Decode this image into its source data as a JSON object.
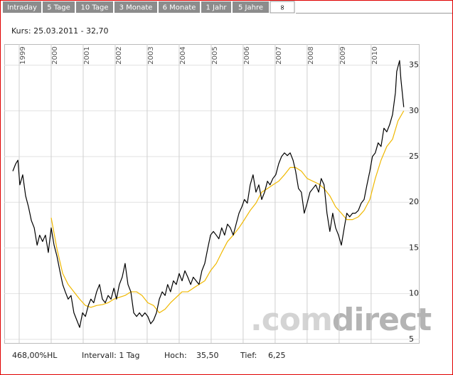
{
  "tabs": [
    "Intraday",
    "5 Tage",
    "10 Tage",
    "3 Monate",
    "6 Monate",
    "1 Jahr",
    "5 Jahre",
    "∞"
  ],
  "header": {
    "quote": "Kurs: 25.03.2011 - 32,70"
  },
  "chart_data": {
    "type": "line",
    "xlim": [
      1998.8,
      2011.07
    ],
    "xticks": [
      1999,
      2000,
      2001,
      2002,
      2003,
      2004,
      2005,
      2006,
      2007,
      2008,
      2009,
      2010
    ],
    "ylim": [
      4.6,
      37.3
    ],
    "yticks": [
      5,
      10,
      15,
      20,
      25,
      30,
      35
    ],
    "grid": true,
    "watermark": [
      ".com",
      "direct"
    ],
    "series": [
      {
        "color": "#000000",
        "x": [
          1998.8,
          1998.89,
          1998.96,
          1999.02,
          1999.11,
          1999.2,
          1999.29,
          1999.38,
          1999.47,
          1999.56,
          1999.64,
          1999.73,
          1999.82,
          1999.91,
          2000.0,
          2000.09,
          2000.18,
          2000.27,
          2000.36,
          2000.44,
          2000.53,
          2000.62,
          2000.71,
          2000.8,
          2000.89,
          2000.98,
          2001.07,
          2001.16,
          2001.24,
          2001.33,
          2001.42,
          2001.51,
          2001.6,
          2001.69,
          2001.78,
          2001.87,
          2001.96,
          2002.04,
          2002.13,
          2002.22,
          2002.31,
          2002.4,
          2002.49,
          2002.58,
          2002.67,
          2002.76,
          2002.84,
          2002.93,
          2003.02,
          2003.11,
          2003.2,
          2003.29,
          2003.38,
          2003.47,
          2003.56,
          2003.64,
          2003.73,
          2003.82,
          2003.91,
          2004.0,
          2004.09,
          2004.18,
          2004.27,
          2004.36,
          2004.44,
          2004.53,
          2004.62,
          2004.71,
          2004.8,
          2004.89,
          2004.98,
          2005.07,
          2005.16,
          2005.24,
          2005.33,
          2005.42,
          2005.51,
          2005.6,
          2005.69,
          2005.78,
          2005.87,
          2005.96,
          2006.04,
          2006.13,
          2006.22,
          2006.31,
          2006.4,
          2006.49,
          2006.58,
          2006.67,
          2006.76,
          2006.84,
          2006.93,
          2007.02,
          2007.11,
          2007.2,
          2007.29,
          2007.38,
          2007.47,
          2007.56,
          2007.64,
          2007.73,
          2007.82,
          2007.91,
          2008.0,
          2008.09,
          2008.18,
          2008.27,
          2008.36,
          2008.44,
          2008.53,
          2008.62,
          2008.71,
          2008.8,
          2008.89,
          2008.98,
          2009.07,
          2009.16,
          2009.24,
          2009.33,
          2009.42,
          2009.51,
          2009.6,
          2009.69,
          2009.78,
          2009.87,
          2009.96,
          2010.04,
          2010.13,
          2010.22,
          2010.31,
          2010.4,
          2010.49,
          2010.58,
          2010.67,
          2010.76,
          2010.8,
          2010.89,
          2010.93,
          2011.02
        ],
        "values": [
          23.4,
          24.2,
          24.6,
          21.9,
          23.0,
          20.7,
          19.5,
          18.0,
          17.2,
          15.3,
          16.4,
          15.7,
          16.4,
          14.5,
          17.2,
          15.3,
          14.1,
          12.5,
          11.0,
          10.2,
          9.4,
          9.8,
          7.9,
          7.1,
          6.3,
          7.9,
          7.5,
          8.7,
          9.4,
          9.0,
          10.2,
          11.0,
          9.4,
          9.0,
          9.8,
          9.4,
          10.6,
          9.4,
          11.0,
          11.8,
          13.3,
          11.0,
          10.2,
          7.9,
          7.5,
          7.9,
          7.5,
          7.9,
          7.5,
          6.7,
          7.1,
          7.9,
          9.4,
          10.2,
          9.8,
          11.0,
          10.2,
          11.4,
          11.0,
          12.2,
          11.4,
          12.5,
          11.8,
          11.0,
          11.8,
          11.4,
          11.0,
          12.5,
          13.3,
          14.9,
          16.4,
          16.8,
          16.4,
          16.0,
          17.2,
          16.4,
          17.6,
          17.2,
          16.4,
          17.6,
          18.8,
          19.5,
          20.3,
          19.9,
          21.9,
          23.0,
          21.1,
          21.9,
          20.3,
          21.1,
          22.3,
          21.9,
          22.6,
          23.0,
          24.2,
          25.0,
          25.4,
          25.1,
          25.4,
          24.6,
          23.4,
          21.5,
          21.1,
          18.8,
          19.9,
          21.1,
          21.5,
          21.9,
          21.1,
          22.6,
          21.9,
          18.8,
          16.8,
          18.8,
          17.2,
          16.4,
          15.3,
          17.2,
          18.8,
          18.4,
          18.8,
          18.8,
          19.1,
          19.9,
          20.3,
          21.9,
          23.4,
          25.0,
          25.4,
          26.5,
          26.1,
          28.1,
          27.7,
          28.5,
          29.6,
          32.0,
          34.3,
          35.5,
          33.5,
          30.4
        ]
      },
      {
        "color": "#f0b800",
        "x": [
          2000.0,
          2000.18,
          2000.36,
          2000.53,
          2000.71,
          2000.89,
          2001.07,
          2001.24,
          2001.42,
          2001.6,
          2001.78,
          2001.96,
          2002.13,
          2002.31,
          2002.49,
          2002.67,
          2002.84,
          2003.02,
          2003.2,
          2003.38,
          2003.56,
          2003.73,
          2003.91,
          2004.09,
          2004.27,
          2004.44,
          2004.62,
          2004.8,
          2004.98,
          2005.16,
          2005.33,
          2005.51,
          2005.69,
          2005.87,
          2006.04,
          2006.22,
          2006.4,
          2006.58,
          2006.76,
          2006.93,
          2007.11,
          2007.29,
          2007.47,
          2007.64,
          2007.82,
          2008.0,
          2008.18,
          2008.36,
          2008.53,
          2008.71,
          2008.89,
          2009.07,
          2009.24,
          2009.42,
          2009.6,
          2009.78,
          2009.96,
          2010.13,
          2010.31,
          2010.49,
          2010.67,
          2010.84,
          2011.02
        ],
        "values": [
          18.3,
          14.9,
          12.2,
          11.0,
          10.2,
          9.4,
          8.7,
          8.5,
          8.7,
          8.8,
          9.0,
          9.4,
          9.6,
          9.8,
          10.2,
          10.2,
          9.8,
          9.0,
          8.7,
          7.9,
          8.3,
          9.0,
          9.6,
          10.2,
          10.2,
          10.6,
          11.0,
          11.4,
          12.5,
          13.3,
          14.5,
          15.7,
          16.4,
          17.2,
          18.1,
          19.1,
          19.9,
          21.1,
          21.5,
          21.9,
          22.3,
          23.0,
          23.8,
          23.8,
          23.4,
          22.6,
          22.3,
          22.0,
          21.5,
          20.7,
          19.5,
          18.8,
          18.1,
          18.1,
          18.4,
          19.1,
          20.3,
          22.6,
          24.6,
          26.1,
          26.9,
          28.9,
          30.0
        ]
      }
    ]
  },
  "footer": {
    "range": "468,00%HL",
    "interval": "Intervall: 1 Tag",
    "high_label": "Hoch:",
    "high": "35,50",
    "low_label": "Tief:",
    "low": "6,25"
  }
}
